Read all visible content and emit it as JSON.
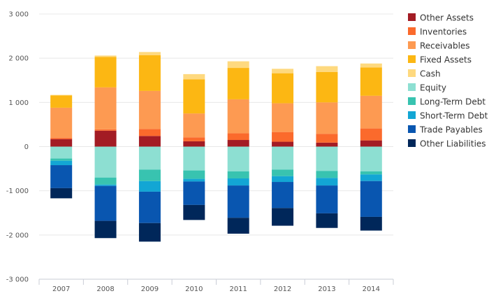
{
  "chart_data": {
    "type": "bar",
    "stacked": true,
    "categories": [
      "2007",
      "2008",
      "2009",
      "2010",
      "2011",
      "2012",
      "2013",
      "2014"
    ],
    "ylim": [
      -3000,
      3000
    ],
    "yticks": [
      3000,
      2000,
      1000,
      0,
      -1000,
      -2000,
      -3000
    ],
    "ytick_labels": [
      "3 000",
      "2 000",
      "1 000",
      "0",
      "-1 000",
      "-2 000",
      "-3 000"
    ],
    "grid": true,
    "legend_position": "right",
    "series": [
      {
        "name": "Other Assets",
        "color": "#a31c24",
        "values": [
          170,
          360,
          240,
          120,
          150,
          110,
          90,
          140
        ]
      },
      {
        "name": "Inventories",
        "color": "#fb6a2c",
        "values": [
          30,
          30,
          160,
          90,
          150,
          220,
          200,
          270
        ]
      },
      {
        "name": "Receivables",
        "color": "#fd9a52",
        "values": [
          680,
          950,
          860,
          540,
          770,
          650,
          710,
          740
        ]
      },
      {
        "name": "Fixed Assets",
        "color": "#fcb713",
        "values": [
          280,
          690,
          810,
          770,
          710,
          680,
          690,
          640
        ]
      },
      {
        "name": "Cash",
        "color": "#fed97f",
        "values": [
          10,
          30,
          70,
          120,
          150,
          100,
          130,
          90
        ]
      },
      {
        "name": "Equity",
        "color": "#8ddfd2",
        "values": [
          -270,
          -700,
          -520,
          -540,
          -560,
          -520,
          -550,
          -560
        ]
      },
      {
        "name": "Long-Term Debt",
        "color": "#38c3b0",
        "values": [
          -50,
          -160,
          -260,
          -190,
          -160,
          -150,
          -160,
          -70
        ]
      },
      {
        "name": "Short-Term Debt",
        "color": "#13a6d4",
        "values": [
          -100,
          -30,
          -240,
          -60,
          -160,
          -130,
          -170,
          -150
        ]
      },
      {
        "name": "Trade Payables",
        "color": "#0956b0",
        "values": [
          -520,
          -790,
          -710,
          -530,
          -730,
          -590,
          -630,
          -810
        ]
      },
      {
        "name": "Other Liabilities",
        "color": "#00275a",
        "values": [
          -230,
          -390,
          -420,
          -340,
          -360,
          -400,
          -330,
          -310
        ]
      }
    ]
  }
}
